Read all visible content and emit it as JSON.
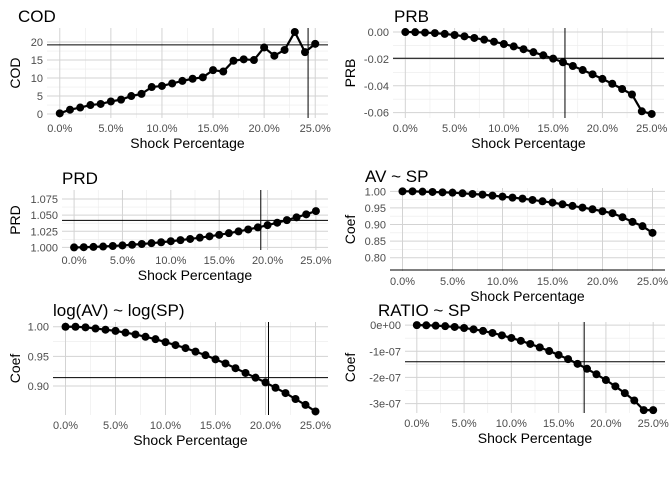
{
  "chart_data": [
    {
      "type": "line",
      "title": "COD",
      "xlabel": "Shock Percentage",
      "ylabel": "COD",
      "x": [
        0,
        1,
        2,
        3,
        4,
        5,
        6,
        7,
        8,
        9,
        10,
        11,
        12,
        13,
        14,
        15,
        16,
        17,
        18,
        19,
        20,
        21,
        22,
        23,
        24,
        25
      ],
      "y": [
        0.2,
        1.2,
        1.8,
        2.5,
        2.8,
        3.5,
        4.0,
        5.0,
        5.6,
        7.5,
        7.8,
        8.5,
        9.2,
        9.8,
        10.2,
        12.2,
        11.8,
        14.8,
        15.2,
        15.0,
        18.5,
        16.2,
        17.8,
        22.8,
        17.2,
        19.5
      ],
      "xticks": [
        {
          "v": 0,
          "label": "0.0%"
        },
        {
          "v": 5,
          "label": "5.0%"
        },
        {
          "v": 10,
          "label": "10.0%"
        },
        {
          "v": 15,
          "label": "15.0%"
        },
        {
          "v": 20,
          "label": "20.0%"
        },
        {
          "v": 25,
          "label": "25.0%"
        }
      ],
      "yticks": [
        {
          "v": 0,
          "label": "0"
        },
        {
          "v": 5,
          "label": "5"
        },
        {
          "v": 10,
          "label": "10"
        },
        {
          "v": 15,
          "label": "15"
        },
        {
          "v": 20,
          "label": "20"
        }
      ],
      "xlim": [
        -1.25,
        26.25
      ],
      "ylim": [
        -1.1,
        23.9
      ],
      "hline": 19.2,
      "vline": 24.3,
      "grid": true
    },
    {
      "type": "line",
      "title": "PRB",
      "xlabel": "Shock Percentage",
      "ylabel": "PRB",
      "x": [
        0,
        1,
        2,
        3,
        4,
        5,
        6,
        7,
        8,
        9,
        10,
        11,
        12,
        13,
        14,
        15,
        16,
        17,
        18,
        19,
        20,
        21,
        22,
        23,
        24,
        25
      ],
      "y": [
        0,
        -0.0001,
        -0.0004,
        -0.0008,
        -0.0014,
        -0.0022,
        -0.0032,
        -0.0044,
        -0.0057,
        -0.0072,
        -0.0089,
        -0.0107,
        -0.0128,
        -0.015,
        -0.0173,
        -0.0198,
        -0.0225,
        -0.0253,
        -0.0283,
        -0.0315,
        -0.0349,
        -0.0385,
        -0.0424,
        -0.0465,
        -0.059,
        -0.061
      ],
      "xticks": [
        {
          "v": 0,
          "label": "0.0%"
        },
        {
          "v": 5,
          "label": "5.0%"
        },
        {
          "v": 10,
          "label": "10.0%"
        },
        {
          "v": 15,
          "label": "15.0%"
        },
        {
          "v": 20,
          "label": "20.0%"
        },
        {
          "v": 25,
          "label": "25.0%"
        }
      ],
      "yticks": [
        {
          "v": 0,
          "label": "0.00"
        },
        {
          "v": -0.02,
          "label": "-0.02"
        },
        {
          "v": -0.04,
          "label": "-0.04"
        },
        {
          "v": -0.06,
          "label": "-0.06"
        }
      ],
      "xlim": [
        -1.25,
        26.25
      ],
      "ylim": [
        -0.064,
        0.003
      ],
      "hline": -0.0195,
      "vline": 16.2,
      "grid": true
    },
    {
      "type": "line",
      "title": "PRD",
      "xlabel": "Shock Percentage",
      "ylabel": "PRD",
      "x": [
        0,
        1,
        2,
        3,
        4,
        5,
        6,
        7,
        8,
        9,
        10,
        11,
        12,
        13,
        14,
        15,
        16,
        17,
        18,
        19,
        20,
        21,
        22,
        23,
        24,
        25
      ],
      "y": [
        1.0,
        1.0003,
        1.0008,
        1.0014,
        1.0022,
        1.0031,
        1.0041,
        1.0053,
        1.0066,
        1.008,
        1.0096,
        1.0113,
        1.0131,
        1.0151,
        1.0172,
        1.0195,
        1.0221,
        1.0248,
        1.0278,
        1.031,
        1.0345,
        1.0383,
        1.0423,
        1.0466,
        1.0513,
        1.0563
      ],
      "xticks": [
        {
          "v": 0,
          "label": "0.0%"
        },
        {
          "v": 5,
          "label": "5.0%"
        },
        {
          "v": 10,
          "label": "10.0%"
        },
        {
          "v": 15,
          "label": "15.0%"
        },
        {
          "v": 20,
          "label": "20.0%"
        },
        {
          "v": 25,
          "label": "25.0%"
        }
      ],
      "yticks": [
        {
          "v": 1.0,
          "label": "1.000"
        },
        {
          "v": 1.025,
          "label": "1.025"
        },
        {
          "v": 1.05,
          "label": "1.050"
        },
        {
          "v": 1.075,
          "label": "1.075"
        }
      ],
      "xlim": [
        -1.25,
        26.25
      ],
      "ylim": [
        0.996,
        1.089
      ],
      "hline": 1.042,
      "vline": 19.3,
      "grid": true
    },
    {
      "type": "line",
      "title": "AV ~ SP",
      "xlabel": "Shock Percentage",
      "ylabel": "Coef",
      "x": [
        0,
        1,
        2,
        3,
        4,
        5,
        6,
        7,
        8,
        9,
        10,
        11,
        12,
        13,
        14,
        15,
        16,
        17,
        18,
        19,
        20,
        21,
        22,
        23,
        24,
        25
      ],
      "y": [
        1.0,
        1.0,
        0.999,
        0.998,
        0.997,
        0.996,
        0.994,
        0.992,
        0.99,
        0.987,
        0.984,
        0.981,
        0.978,
        0.974,
        0.97,
        0.966,
        0.961,
        0.956,
        0.951,
        0.946,
        0.94,
        0.934,
        0.922,
        0.908,
        0.895,
        0.875
      ],
      "xticks": [
        {
          "v": 0,
          "label": "0.0%"
        },
        {
          "v": 5,
          "label": "5.0%"
        },
        {
          "v": 10,
          "label": "10.0%"
        },
        {
          "v": 15,
          "label": "15.0%"
        },
        {
          "v": 20,
          "label": "20.0%"
        },
        {
          "v": 25,
          "label": "25.0%"
        }
      ],
      "yticks": [
        {
          "v": 0.8,
          "label": "0.80"
        },
        {
          "v": 0.85,
          "label": "0.85"
        },
        {
          "v": 0.9,
          "label": "0.90"
        },
        {
          "v": 0.95,
          "label": "0.95"
        },
        {
          "v": 1.0,
          "label": "1.00"
        }
      ],
      "xlim": [
        -1.25,
        26.25
      ],
      "ylim": [
        0.76,
        1.01
      ],
      "hline": 0.763,
      "vline": null,
      "grid": true
    },
    {
      "type": "line",
      "title": "log(AV) ~ log(SP)",
      "xlabel": "Shock Percentage",
      "ylabel": "Coef",
      "x": [
        0,
        1,
        2,
        3,
        4,
        5,
        6,
        7,
        8,
        9,
        10,
        11,
        12,
        13,
        14,
        15,
        16,
        17,
        18,
        19,
        20,
        21,
        22,
        23,
        24,
        25
      ],
      "y": [
        1.0,
        1.0,
        0.999,
        0.997,
        0.995,
        0.993,
        0.99,
        0.987,
        0.983,
        0.979,
        0.974,
        0.969,
        0.964,
        0.958,
        0.952,
        0.945,
        0.938,
        0.93,
        0.922,
        0.914,
        0.906,
        0.897,
        0.888,
        0.878,
        0.868,
        0.857
      ],
      "xticks": [
        {
          "v": 0,
          "label": "0.0%"
        },
        {
          "v": 5,
          "label": "5.0%"
        },
        {
          "v": 10,
          "label": "10.0%"
        },
        {
          "v": 15,
          "label": "15.0%"
        },
        {
          "v": 20,
          "label": "20.0%"
        },
        {
          "v": 25,
          "label": "25.0%"
        }
      ],
      "yticks": [
        {
          "v": 0.9,
          "label": "0.90"
        },
        {
          "v": 0.95,
          "label": "0.95"
        },
        {
          "v": 1.0,
          "label": "1.00"
        }
      ],
      "xlim": [
        -1.25,
        26.25
      ],
      "ylim": [
        0.851,
        1.008
      ],
      "hline": 0.914,
      "vline": 20.3,
      "grid": true
    },
    {
      "type": "line",
      "title": "RATIO ~ SP",
      "xlabel": "Shock Percentage",
      "ylabel": "Coef",
      "x": [
        0,
        1,
        2,
        3,
        4,
        5,
        6,
        7,
        8,
        9,
        10,
        11,
        12,
        13,
        14,
        15,
        16,
        17,
        18,
        19,
        20,
        21,
        22,
        23,
        24,
        25
      ],
      "y": [
        0,
        -0.0005,
        -0.002,
        -0.004,
        -0.007,
        -0.011,
        -0.016,
        -0.022,
        -0.03,
        -0.039,
        -0.049,
        -0.06,
        -0.072,
        -0.085,
        -0.099,
        -0.114,
        -0.13,
        -0.148,
        -0.167,
        -0.188,
        -0.21,
        -0.234,
        -0.26,
        -0.288,
        -0.325,
        -0.325
      ],
      "yscale_note": "values shown in units of 1e-06",
      "xticks": [
        {
          "v": 0,
          "label": "0.0%"
        },
        {
          "v": 5,
          "label": "5.0%"
        },
        {
          "v": 10,
          "label": "10.0%"
        },
        {
          "v": 15,
          "label": "15.0%"
        },
        {
          "v": 20,
          "label": "20.0%"
        },
        {
          "v": 25,
          "label": "25.0%"
        }
      ],
      "yticks": [
        {
          "v": 0,
          "label": "0e+00"
        },
        {
          "v": -0.1,
          "label": "-1e-07"
        },
        {
          "v": -0.2,
          "label": "-2e-07"
        },
        {
          "v": -0.3,
          "label": "-3e-07"
        }
      ],
      "xlim": [
        -1.25,
        26.25
      ],
      "ylim": [
        -0.336,
        0.012
      ],
      "hline": -0.14,
      "vline": 17.7,
      "grid": true
    }
  ]
}
